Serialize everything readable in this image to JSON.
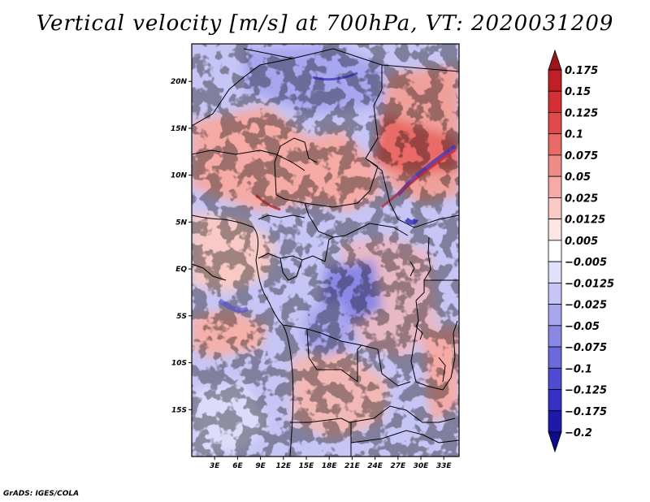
{
  "title": "Vertical velocity [m/s] at 700hPa, VT: 2020031209",
  "credit": "GrADS: IGES/COLA",
  "map": {
    "lon_range": [
      0,
      35
    ],
    "lat_range": [
      -20,
      24
    ],
    "lat_ticks": [
      {
        "value": 20,
        "label": "20N"
      },
      {
        "value": 15,
        "label": "15N"
      },
      {
        "value": 10,
        "label": "10N"
      },
      {
        "value": 5,
        "label": "5N"
      },
      {
        "value": 0,
        "label": "EQ"
      },
      {
        "value": -5,
        "label": "5S"
      },
      {
        "value": -10,
        "label": "10S"
      },
      {
        "value": -15,
        "label": "15S"
      }
    ],
    "lon_ticks": [
      {
        "value": 3,
        "label": "3E"
      },
      {
        "value": 6,
        "label": "6E"
      },
      {
        "value": 9,
        "label": "9E"
      },
      {
        "value": 12,
        "label": "12E"
      },
      {
        "value": 15,
        "label": "15E"
      },
      {
        "value": 18,
        "label": "18E"
      },
      {
        "value": 21,
        "label": "21E"
      },
      {
        "value": 24,
        "label": "24E"
      },
      {
        "value": 27,
        "label": "27E"
      },
      {
        "value": 30,
        "label": "30E"
      },
      {
        "value": 33,
        "label": "33E"
      }
    ]
  },
  "colorbar": {
    "labels": [
      "0.175",
      "0.15",
      "0.125",
      "0.1",
      "0.075",
      "0.05",
      "0.025",
      "0.0125",
      "0.005",
      "−0.005",
      "−0.0125",
      "−0.025",
      "−0.05",
      "−0.075",
      "−0.1",
      "−0.125",
      "−0.175",
      "−0.2"
    ],
    "colors": [
      "#a0141e",
      "#c11f27",
      "#d32f35",
      "#e14a4b",
      "#e96a66",
      "#f08c86",
      "#f5aaa5",
      "#f8c9c5",
      "#fce6e3",
      "#ffffff",
      "#e1e1fb",
      "#c6c5f5",
      "#a8a6ee",
      "#8a87e5",
      "#6c69dc",
      "#4f4bd2",
      "#3430c4",
      "#1d19a9",
      "#0e0c8c"
    ],
    "max_color": "#a0141e",
    "min_color": "#0e0c8c"
  }
}
